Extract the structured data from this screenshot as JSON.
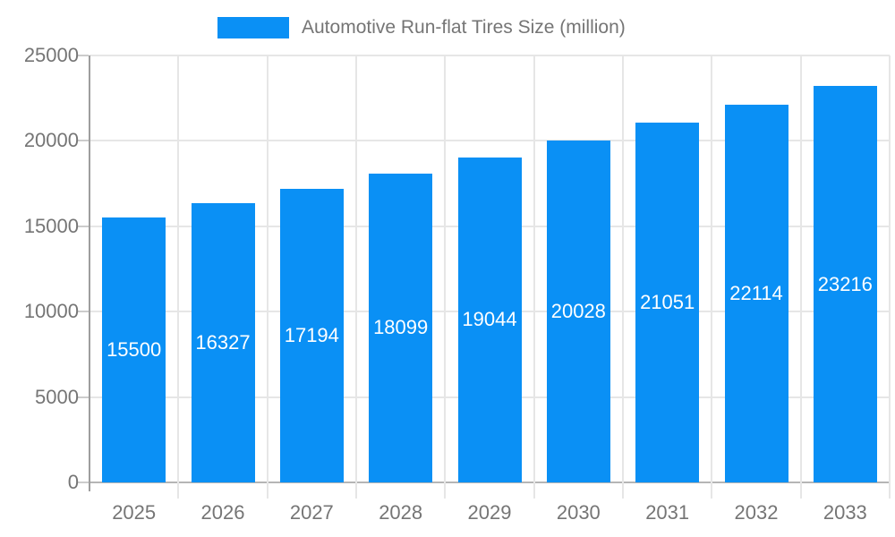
{
  "legend": {
    "label": "Automotive Run-flat Tires Size (million)"
  },
  "chart_data": {
    "type": "bar",
    "title": "Automotive Run-flat Tires Size (million)",
    "categories": [
      "2025",
      "2026",
      "2027",
      "2028",
      "2029",
      "2030",
      "2031",
      "2032",
      "2033"
    ],
    "values": [
      15500,
      16327,
      17194,
      18099,
      19044,
      20028,
      21051,
      22114,
      23216
    ],
    "xlabel": "",
    "ylabel": "",
    "ylim": [
      0,
      25000
    ],
    "yticks": [
      0,
      5000,
      10000,
      15000,
      20000,
      25000
    ],
    "grid": true,
    "legend_position": "top-center",
    "value_labels": "inside-bars-centered"
  },
  "colors": {
    "bar": "#0a90f5",
    "value_label_text": "#ffffff",
    "axis_text": "#757575",
    "legend_text": "#757575",
    "gridline": "#e6e6e6",
    "y_axis_line": "#9e9e9e",
    "baseline": "#b5b5b5",
    "background": "#ffffff"
  }
}
